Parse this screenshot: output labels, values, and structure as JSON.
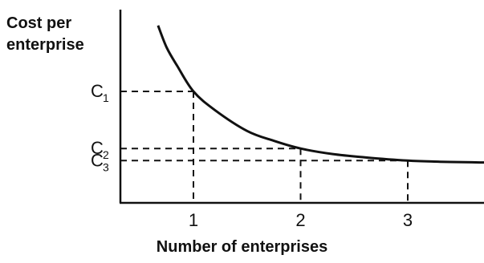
{
  "chart_data": {
    "type": "line",
    "ylabel_line1": "Cost per",
    "ylabel_line2": "enterprise",
    "xlabel": "Number of enterprises",
    "x_ticks": [
      "1",
      "2",
      "3"
    ],
    "series": [
      {
        "x": [
          0.67,
          0.75,
          0.85,
          1.0,
          1.2,
          1.5,
          1.75,
          2.0,
          2.3,
          2.6,
          3.0,
          3.3,
          3.6,
          3.85
        ],
        "y": [
          1.6,
          1.4,
          1.23,
          1.0,
          0.83,
          0.64,
          0.55,
          0.48,
          0.43,
          0.4,
          0.37,
          0.36,
          0.355,
          0.35
        ]
      }
    ],
    "reference_points": [
      {
        "x_label": "1",
        "y_label": "C",
        "y_sub": "1",
        "x": 1.0,
        "y": 1.0
      },
      {
        "x_label": "2",
        "y_label": "C",
        "y_sub": "2",
        "x": 2.0,
        "y": 0.48
      },
      {
        "x_label": "3",
        "y_label": "C",
        "y_sub": "3",
        "x": 3.0,
        "y": 0.37
      }
    ],
    "xlim": [
      0,
      3.85
    ],
    "ylim": [
      0,
      1.6
    ],
    "grid": false,
    "colors": {
      "axis": "#111111",
      "curve": "#111111",
      "guides": "#111111"
    }
  }
}
